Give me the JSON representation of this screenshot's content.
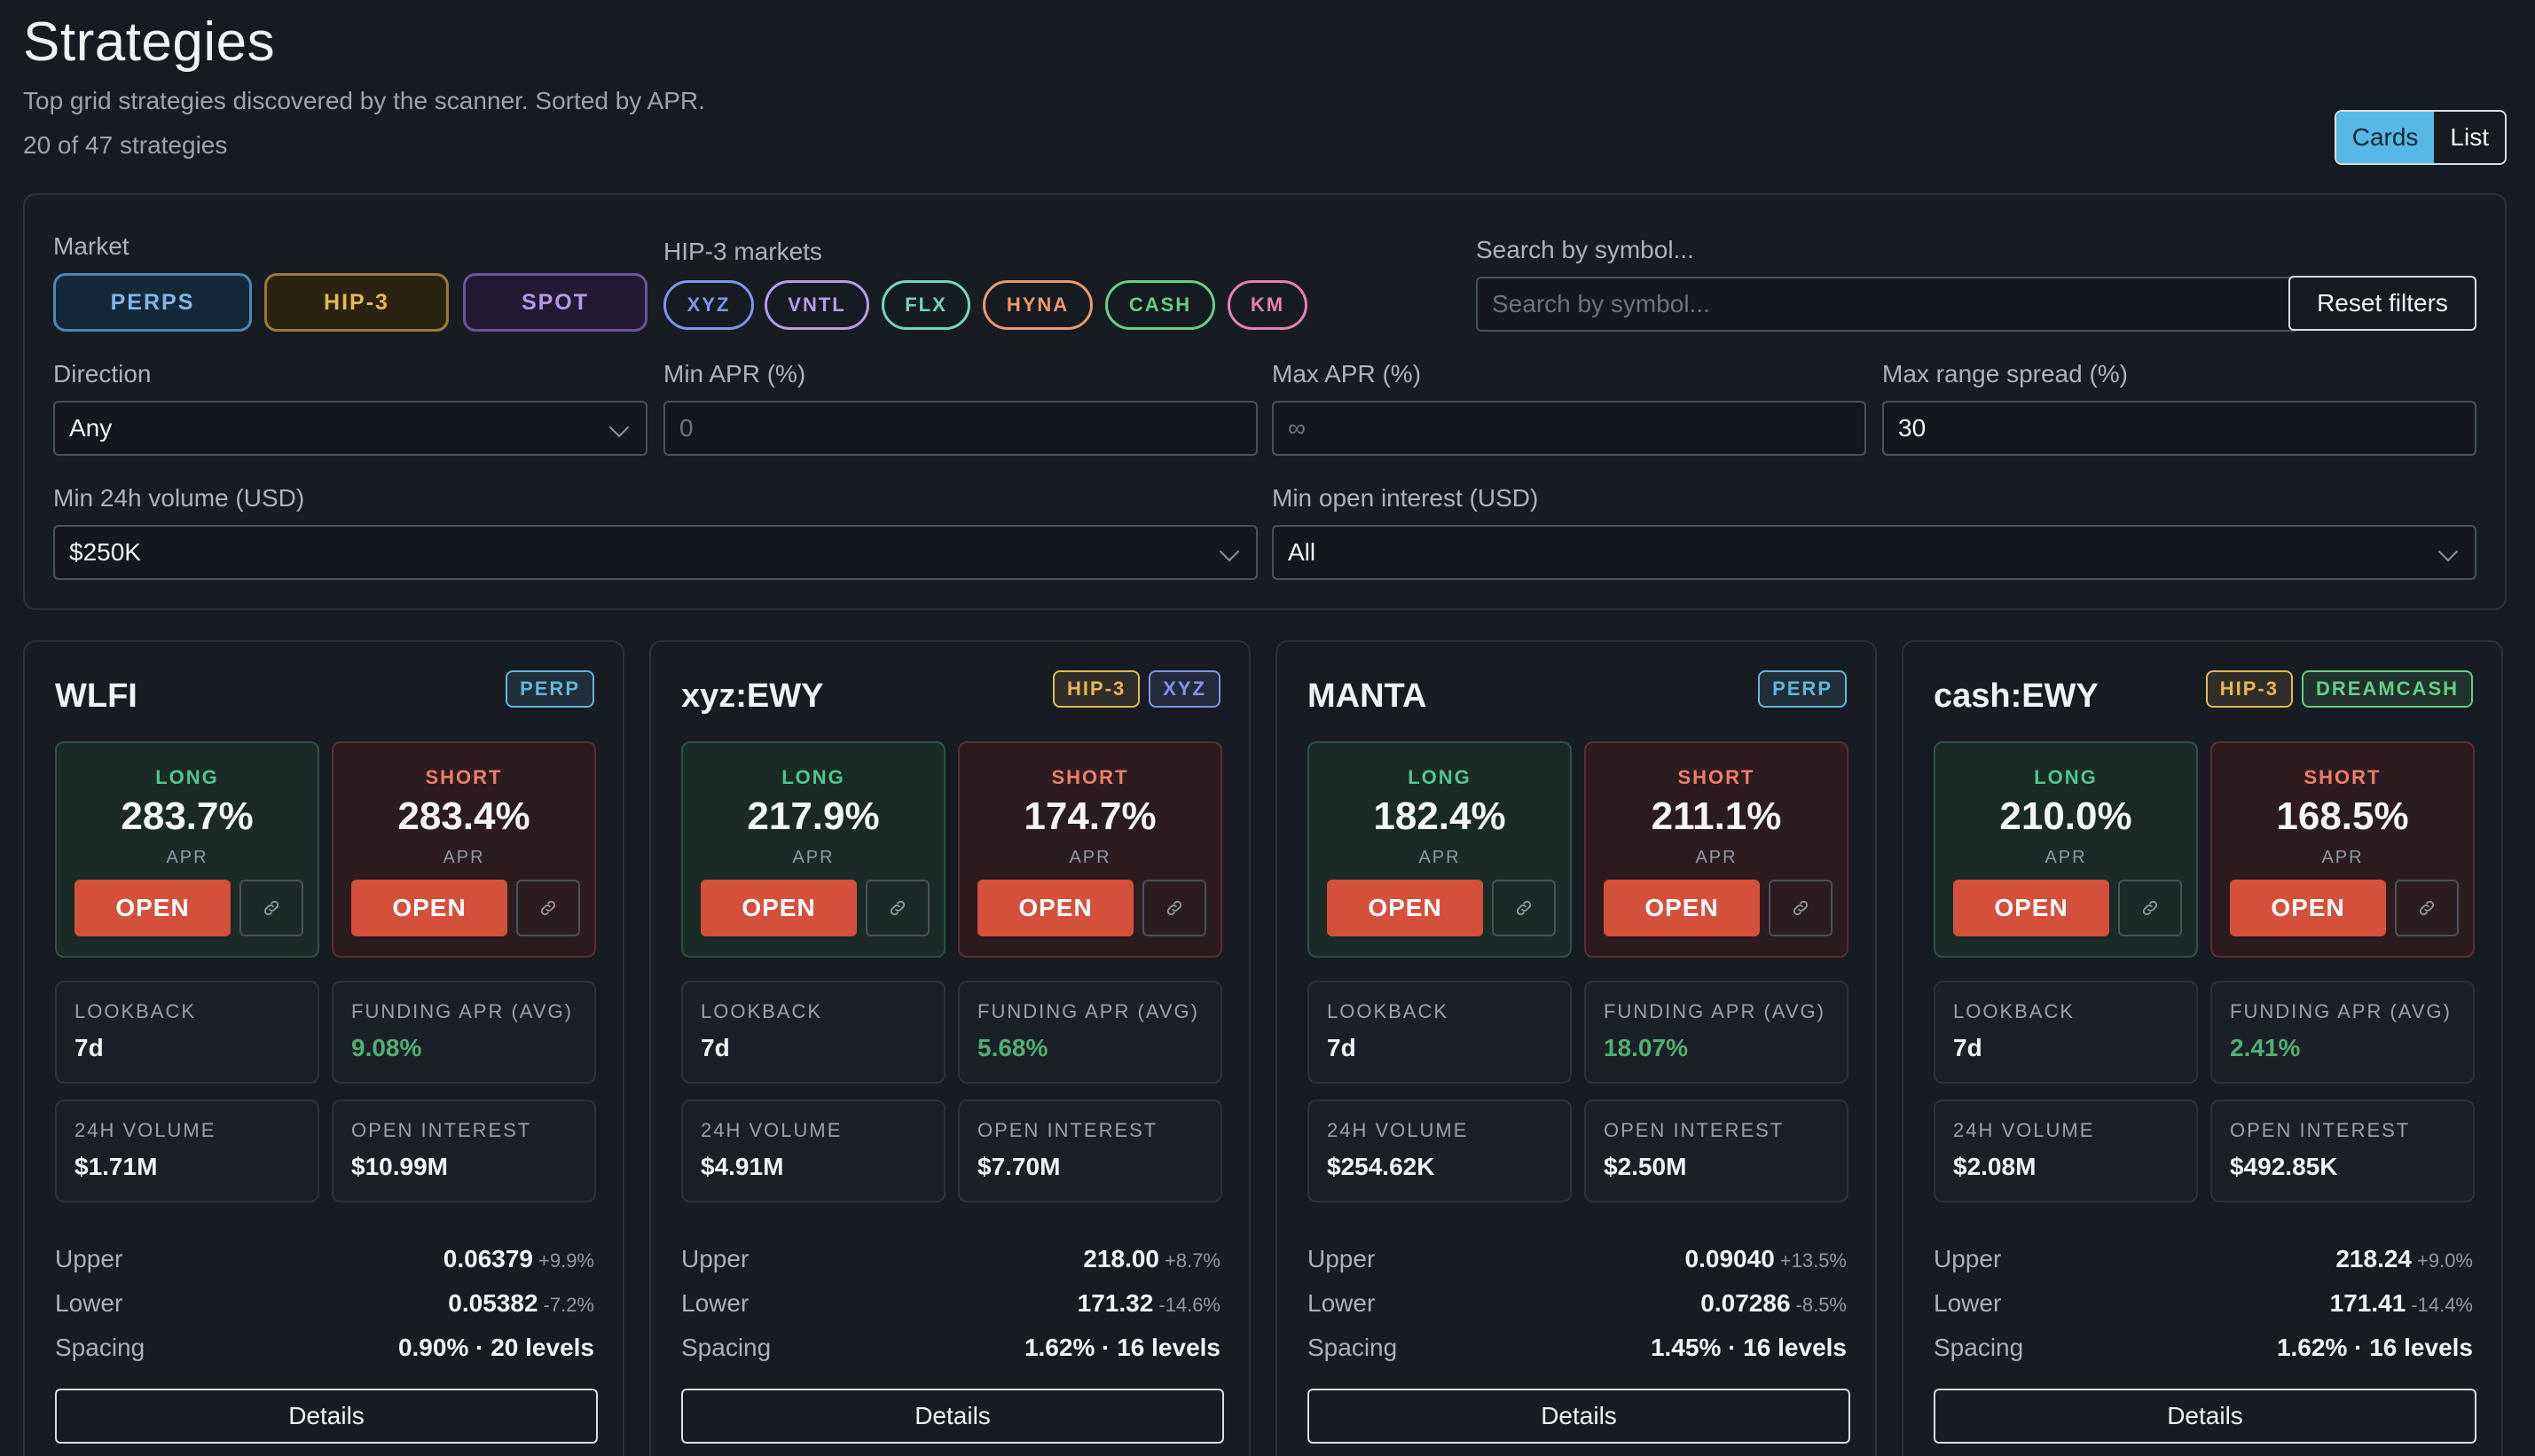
{
  "header": {
    "title": "Strategies",
    "subtitle": "Top grid strategies discovered by the scanner. Sorted by APR.",
    "count": "20 of 47 strategies"
  },
  "view_toggle": {
    "cards_label": "Cards",
    "list_label": "List",
    "active": "Cards"
  },
  "filters": {
    "market_label": "Market",
    "market_options": [
      {
        "label": "PERPS",
        "color": "#7fb8e6"
      },
      {
        "label": "HIP-3",
        "color": "#e7b755"
      },
      {
        "label": "SPOT",
        "color": "#b49ae6"
      }
    ],
    "hip3_label": "HIP-3 markets",
    "hip3_options": [
      {
        "label": "XYZ",
        "color": "#7c96ee"
      },
      {
        "label": "VNTL",
        "color": "#b99bea"
      },
      {
        "label": "FLX",
        "color": "#6fd6c6"
      },
      {
        "label": "HYNA",
        "color": "#ef9a6a"
      },
      {
        "label": "CASH",
        "color": "#66cf86"
      },
      {
        "label": "KM",
        "color": "#e77fb7"
      }
    ],
    "search_label": "Search by symbol...",
    "search_placeholder": "Search by symbol...",
    "reset_label": "Reset filters",
    "direction_label": "Direction",
    "direction_value": "Any",
    "min_apr_label": "Min APR (%)",
    "min_apr_placeholder": "0",
    "max_apr_label": "Max APR (%)",
    "max_apr_placeholder": "∞",
    "max_range_label": "Max range spread (%)",
    "max_range_value": "30",
    "min_volume_label": "Min 24h volume (USD)",
    "min_volume_value": "$250K",
    "min_oi_label": "Min open interest (USD)",
    "min_oi_value": "All"
  },
  "labels": {
    "long": "LONG",
    "short": "SHORT",
    "apr": "APR",
    "open": "OPEN",
    "lookback": "LOOKBACK",
    "funding": "FUNDING APR (AVG)",
    "volume": "24H VOLUME",
    "oi": "OPEN INTEREST",
    "upper": "Upper",
    "lower": "Lower",
    "spacing": "Spacing",
    "details": "Details"
  },
  "cards": [
    {
      "symbol": "WLFI",
      "badges": [
        {
          "label": "PERP",
          "color": "#5fb6e0"
        }
      ],
      "long_apr": "283.7%",
      "short_apr": "283.4%",
      "lookback": "7d",
      "funding": "9.08%",
      "volume": "$1.71M",
      "oi": "$10.99M",
      "upper": "0.06379",
      "upper_pct": "+9.9%",
      "lower": "0.05382",
      "lower_pct": "-7.2%",
      "spacing": "0.90% · 20 levels"
    },
    {
      "symbol": "xyz:EWY",
      "badges": [
        {
          "label": "HIP-3",
          "color": "#e7b755"
        },
        {
          "label": "XYZ",
          "color": "#7c96ee"
        }
      ],
      "long_apr": "217.9%",
      "short_apr": "174.7%",
      "lookback": "7d",
      "funding": "5.68%",
      "volume": "$4.91M",
      "oi": "$7.70M",
      "upper": "218.00",
      "upper_pct": "+8.7%",
      "lower": "171.32",
      "lower_pct": "-14.6%",
      "spacing": "1.62% · 16 levels"
    },
    {
      "symbol": "MANTA",
      "badges": [
        {
          "label": "PERP",
          "color": "#5fb6e0"
        }
      ],
      "long_apr": "182.4%",
      "short_apr": "211.1%",
      "lookback": "7d",
      "funding": "18.07%",
      "volume": "$254.62K",
      "oi": "$2.50M",
      "upper": "0.09040",
      "upper_pct": "+13.5%",
      "lower": "0.07286",
      "lower_pct": "-8.5%",
      "spacing": "1.45% · 16 levels"
    },
    {
      "symbol": "cash:EWY",
      "badges": [
        {
          "label": "HIP-3",
          "color": "#e7b755"
        },
        {
          "label": "DREAMCASH",
          "color": "#66cf86"
        }
      ],
      "long_apr": "210.0%",
      "short_apr": "168.5%",
      "lookback": "7d",
      "funding": "2.41%",
      "volume": "$2.08M",
      "oi": "$492.85K",
      "upper": "218.24",
      "upper_pct": "+9.0%",
      "lower": "171.41",
      "lower_pct": "-14.4%",
      "spacing": "1.62% · 16 levels"
    }
  ]
}
